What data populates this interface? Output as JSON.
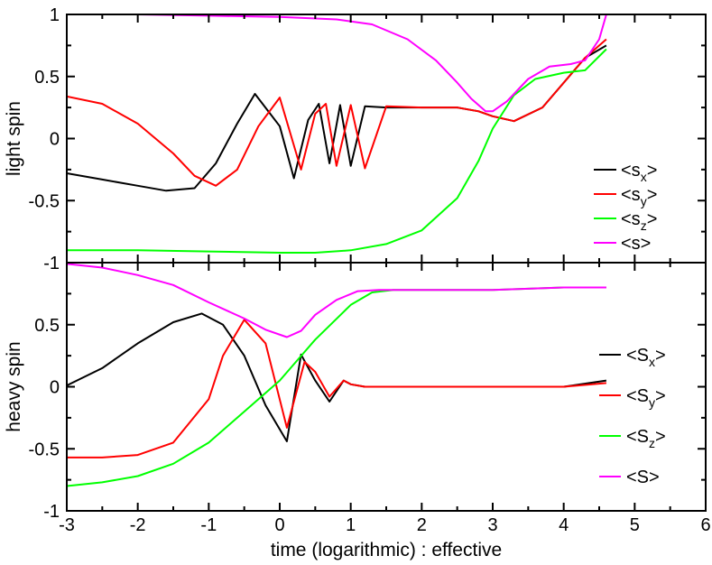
{
  "chart_data": [
    {
      "type": "line",
      "ylabel": "light spin",
      "xlim": [
        -3,
        6
      ],
      "ylim": [
        -1,
        1
      ],
      "yticks": [
        "1",
        "0.5",
        "0",
        "-0.5",
        "-1"
      ],
      "grid": false,
      "legend": {
        "placement": "right",
        "entries": [
          {
            "text": "<s",
            "sub": "x",
            "suffix": ">",
            "color": "#000000"
          },
          {
            "text": "<s",
            "sub": "y",
            "suffix": ">",
            "color": "#ff0000"
          },
          {
            "text": "<s",
            "sub": "z",
            "suffix": ">",
            "color": "#00ff00"
          },
          {
            "text": "<s>",
            "sub": "",
            "suffix": "",
            "color": "#ff00ff"
          }
        ]
      },
      "series": [
        {
          "color": "#000000",
          "x": [
            -3,
            -2.5,
            -2,
            -1.6,
            -1.2,
            -0.9,
            -0.6,
            -0.35,
            0,
            0.2,
            0.4,
            0.55,
            0.7,
            0.85,
            1.0,
            1.2,
            1.5,
            2.0,
            2.5,
            2.8,
            3.0,
            3.3,
            3.7,
            4.0,
            4.3,
            4.6
          ],
          "y": [
            -0.28,
            -0.33,
            -0.38,
            -0.42,
            -0.4,
            -0.2,
            0.12,
            0.36,
            0.1,
            -0.32,
            0.15,
            0.28,
            -0.2,
            0.27,
            -0.22,
            0.26,
            0.25,
            0.25,
            0.25,
            0.22,
            0.18,
            0.14,
            0.25,
            0.45,
            0.65,
            0.75
          ]
        },
        {
          "color": "#ff0000",
          "x": [
            -3,
            -2.5,
            -2,
            -1.5,
            -1.2,
            -0.9,
            -0.6,
            -0.3,
            0,
            0.3,
            0.5,
            0.65,
            0.8,
            1.0,
            1.2,
            1.5,
            2.0,
            2.5,
            2.8,
            3.0,
            3.3,
            3.7,
            4.0,
            4.3,
            4.6
          ],
          "y": [
            0.34,
            0.28,
            0.12,
            -0.12,
            -0.3,
            -0.38,
            -0.25,
            0.1,
            0.33,
            -0.25,
            0.2,
            0.28,
            -0.22,
            0.27,
            -0.24,
            0.26,
            0.25,
            0.25,
            0.22,
            0.18,
            0.14,
            0.25,
            0.45,
            0.65,
            0.8
          ]
        },
        {
          "color": "#00ff00",
          "x": [
            -3,
            -2,
            -1,
            0,
            0.5,
            1.0,
            1.5,
            2.0,
            2.5,
            2.8,
            3.0,
            3.3,
            3.6,
            4.0,
            4.3,
            4.6
          ],
          "y": [
            -0.9,
            -0.9,
            -0.91,
            -0.92,
            -0.92,
            -0.9,
            -0.85,
            -0.74,
            -0.48,
            -0.18,
            0.08,
            0.35,
            0.48,
            0.53,
            0.55,
            0.72
          ]
        },
        {
          "color": "#ff00ff",
          "x": [
            -3,
            -2,
            -1,
            0,
            0.8,
            1.3,
            1.8,
            2.2,
            2.5,
            2.7,
            2.9,
            3.0,
            3.2,
            3.5,
            3.8,
            4.1,
            4.3,
            4.5,
            4.6
          ],
          "y": [
            1.0,
            1.0,
            0.99,
            0.98,
            0.96,
            0.92,
            0.8,
            0.63,
            0.45,
            0.32,
            0.22,
            0.22,
            0.3,
            0.48,
            0.58,
            0.6,
            0.63,
            0.8,
            1.0
          ]
        }
      ]
    },
    {
      "type": "line",
      "ylabel": "heavy spin",
      "xlabel": "time (logarithmic) : effective",
      "xlim": [
        -3,
        6
      ],
      "ylim": [
        -1,
        1
      ],
      "xticks": [
        "-3",
        "-2",
        "-1",
        "0",
        "1",
        "2",
        "3",
        "4",
        "5",
        "6"
      ],
      "yticks": [
        "0.5",
        "0",
        "-0.5",
        "-1"
      ],
      "grid": false,
      "legend": {
        "placement": "right",
        "entries": [
          {
            "text": "<S",
            "sub": "x",
            "suffix": ">",
            "color": "#000000"
          },
          {
            "text": "<S",
            "sub": "y",
            "suffix": ">",
            "color": "#ff0000"
          },
          {
            "text": "<S",
            "sub": "z",
            "suffix": ">",
            "color": "#00ff00"
          },
          {
            "text": "<S>",
            "sub": "",
            "suffix": "",
            "color": "#ff00ff"
          }
        ]
      },
      "series": [
        {
          "color": "#000000",
          "x": [
            -3,
            -2.5,
            -2,
            -1.5,
            -1.1,
            -0.8,
            -0.5,
            -0.2,
            0.1,
            0.3,
            0.5,
            0.7,
            0.9,
            1.0,
            1.2,
            1.5,
            2.0,
            2.5,
            3.0,
            3.5,
            4.0,
            4.6
          ],
          "y": [
            0.01,
            0.15,
            0.35,
            0.52,
            0.59,
            0.5,
            0.25,
            -0.15,
            -0.44,
            0.26,
            0.05,
            -0.12,
            0.05,
            0.02,
            0.0,
            0.0,
            0.0,
            0.0,
            0.0,
            0.0,
            0.0,
            0.05
          ]
        },
        {
          "color": "#ff0000",
          "x": [
            -3,
            -2.5,
            -2,
            -1.5,
            -1.0,
            -0.8,
            -0.5,
            -0.2,
            0.1,
            0.35,
            0.5,
            0.7,
            0.9,
            1.0,
            1.2,
            1.5,
            2.0,
            2.5,
            3.0,
            3.5,
            4.0,
            4.6
          ],
          "y": [
            -0.57,
            -0.57,
            -0.55,
            -0.45,
            -0.1,
            0.25,
            0.54,
            0.35,
            -0.33,
            0.2,
            0.12,
            -0.08,
            0.05,
            0.02,
            0.0,
            0.0,
            0.0,
            0.0,
            0.0,
            0.0,
            0.0,
            0.03
          ]
        },
        {
          "color": "#00ff00",
          "x": [
            -3,
            -2.5,
            -2,
            -1.5,
            -1.0,
            -0.5,
            0,
            0.5,
            1.0,
            1.3,
            1.6,
            2.0,
            2.5,
            3.0,
            3.5,
            4.0,
            4.6
          ],
          "y": [
            -0.8,
            -0.77,
            -0.72,
            -0.62,
            -0.45,
            -0.2,
            0.05,
            0.38,
            0.66,
            0.76,
            0.78,
            0.78,
            0.78,
            0.78,
            0.79,
            0.8,
            0.8
          ]
        },
        {
          "color": "#ff00ff",
          "x": [
            -3,
            -2.5,
            -2,
            -1.5,
            -1.0,
            -0.5,
            -0.2,
            0.1,
            0.3,
            0.5,
            0.8,
            1.1,
            1.4,
            1.8,
            2.5,
            3.0,
            3.5,
            4.0,
            4.6
          ],
          "y": [
            0.99,
            0.96,
            0.9,
            0.82,
            0.68,
            0.55,
            0.46,
            0.4,
            0.45,
            0.58,
            0.7,
            0.77,
            0.78,
            0.78,
            0.78,
            0.78,
            0.79,
            0.8,
            0.8
          ]
        }
      ]
    }
  ]
}
